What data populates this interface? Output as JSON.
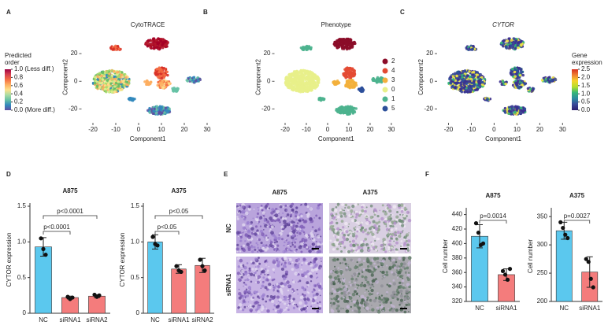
{
  "panel_labels": [
    "A",
    "B",
    "C",
    "D",
    "E",
    "F"
  ],
  "chart_data": [
    {
      "type": "embedding",
      "title": "CytoTRACE",
      "x_label": "Component1",
      "y_label": "Component2",
      "xlim": [
        -25,
        33
      ],
      "ylim": [
        -30,
        36
      ],
      "xticks": [
        -20,
        -10,
        0,
        10,
        20,
        30
      ],
      "yticks": [
        20,
        0,
        -20
      ],
      "colorbar": {
        "title": "Predicted order",
        "lim": [
          0,
          1
        ],
        "colormap": [
          "#5e4fa2",
          "#3288bd",
          "#66c2a5",
          "#abdda4",
          "#fee08b",
          "#fdae61",
          "#f46d43",
          "#d53e4f",
          "#9e0142"
        ],
        "ticks": [
          {
            "value": 1.0,
            "label": "1.0 (Less diff.)"
          },
          0.8,
          0.6,
          0.4,
          0.2,
          {
            "value": 0.0,
            "label": "0.0 (More diff.)"
          }
        ]
      }
    },
    {
      "type": "embedding",
      "title": "Phenotype",
      "x_label": "Component1",
      "y_label": "Component2",
      "xlim": [
        -25,
        33
      ],
      "ylim": [
        -30,
        36
      ],
      "xticks": [
        -20,
        -10,
        0,
        10,
        20,
        30
      ],
      "yticks": [
        20,
        0,
        -20
      ],
      "legend": {
        "categories": [
          "2",
          "4",
          "3",
          "0",
          "1",
          "5"
        ],
        "colors": [
          "#8b0c28",
          "#e34a33",
          "#f3b03c",
          "#e8f08a",
          "#4db38e",
          "#2c4f9a"
        ]
      }
    },
    {
      "type": "embedding",
      "title": "CYTOR",
      "title_style": "italic",
      "x_label": "Component1",
      "y_label": "Component2",
      "xlim": [
        -25,
        33
      ],
      "ylim": [
        -30,
        36
      ],
      "xticks": [
        -20,
        -10,
        0,
        10,
        20,
        30
      ],
      "yticks": [
        20,
        0,
        -20
      ],
      "colorbar": {
        "title": "Gene expression",
        "lim": [
          0,
          2.5
        ],
        "colormap": [
          "#2d1e6e",
          "#3b4a9a",
          "#2c8ba0",
          "#35b779",
          "#b5de2b",
          "#f6d32b",
          "#f08030",
          "#d7301f"
        ],
        "ticks": [
          2.5,
          {
            "value": 2.0,
            "label": "2.0"
          },
          1.5,
          {
            "value": 1.0,
            "label": "1.0"
          },
          0.5,
          {
            "value": 0.0,
            "label": "0.0"
          }
        ]
      }
    },
    {
      "type": "bar",
      "title": "A875",
      "y_label": "CYTOR expression",
      "categories": [
        "NC",
        "siRNA1",
        "siRNA2"
      ],
      "values": [
        0.93,
        0.22,
        0.24
      ],
      "errors": [
        0.13,
        0.02,
        0.02
      ],
      "points": [
        [
          1.05,
          0.9,
          0.82
        ],
        [
          0.23,
          0.2,
          0.22
        ],
        [
          0.26,
          0.23,
          0.25
        ]
      ],
      "colors": [
        "#5bc8ee",
        "#f47c7c",
        "#f47c7c"
      ],
      "ylim": [
        0,
        1.5
      ],
      "yticks": [
        {
          "value": 0,
          "label": "0"
        },
        0.5,
        {
          "value": 1,
          "label": "1.0"
        },
        1.5
      ],
      "annotations": [
        "p<0.0001",
        "p<0.0001"
      ]
    },
    {
      "type": "bar",
      "title": "A375",
      "y_label": "CYTOR expression",
      "categories": [
        "NC",
        "siRNA1",
        "siRNA2"
      ],
      "values": [
        1.0,
        0.62,
        0.67
      ],
      "errors": [
        0.1,
        0.06,
        0.1
      ],
      "points": [
        [
          1.07,
          0.97,
          0.95
        ],
        [
          0.66,
          0.6,
          0.58
        ],
        [
          0.75,
          0.66,
          0.6
        ]
      ],
      "colors": [
        "#5bc8ee",
        "#f47c7c",
        "#f47c7c"
      ],
      "ylim": [
        0,
        1.5
      ],
      "yticks": [
        0,
        0.5,
        {
          "value": 1,
          "label": "1.0"
        },
        1.5
      ],
      "annotations": [
        "p<0.05",
        "p<0.05"
      ]
    },
    {
      "type": "bar",
      "title": "A875",
      "y_label": "Cell number",
      "categories": [
        "NC",
        "siRNA1"
      ],
      "values": [
        410,
        357
      ],
      "errors": [
        16,
        8
      ],
      "points": [
        [
          428,
          415,
          398,
          400
        ],
        [
          362,
          357,
          350,
          365
        ]
      ],
      "colors": [
        "#5bc8ee",
        "#f47c7c"
      ],
      "ylim": [
        320,
        445
      ],
      "yticks": [
        320,
        340,
        360,
        380,
        400,
        420,
        440
      ],
      "annotations": [
        "p=0.0014"
      ]
    },
    {
      "type": "bar",
      "title": "A375",
      "y_label": "Cell number",
      "categories": [
        "NC",
        "siRNA1"
      ],
      "values": [
        325,
        252
      ],
      "errors": [
        15,
        27
      ],
      "points": [
        [
          340,
          330,
          318,
          312
        ],
        [
          275,
          270,
          240,
          225
        ]
      ],
      "colors": [
        "#5bc8ee",
        "#f47c7c"
      ],
      "ylim": [
        200,
        360
      ],
      "yticks": [
        200,
        250,
        300,
        350
      ],
      "annotations": [
        "p=0.0027"
      ]
    }
  ],
  "image_grid": {
    "columns": [
      "A875",
      "A375"
    ],
    "rows": [
      "NC",
      "siRNA1"
    ]
  }
}
